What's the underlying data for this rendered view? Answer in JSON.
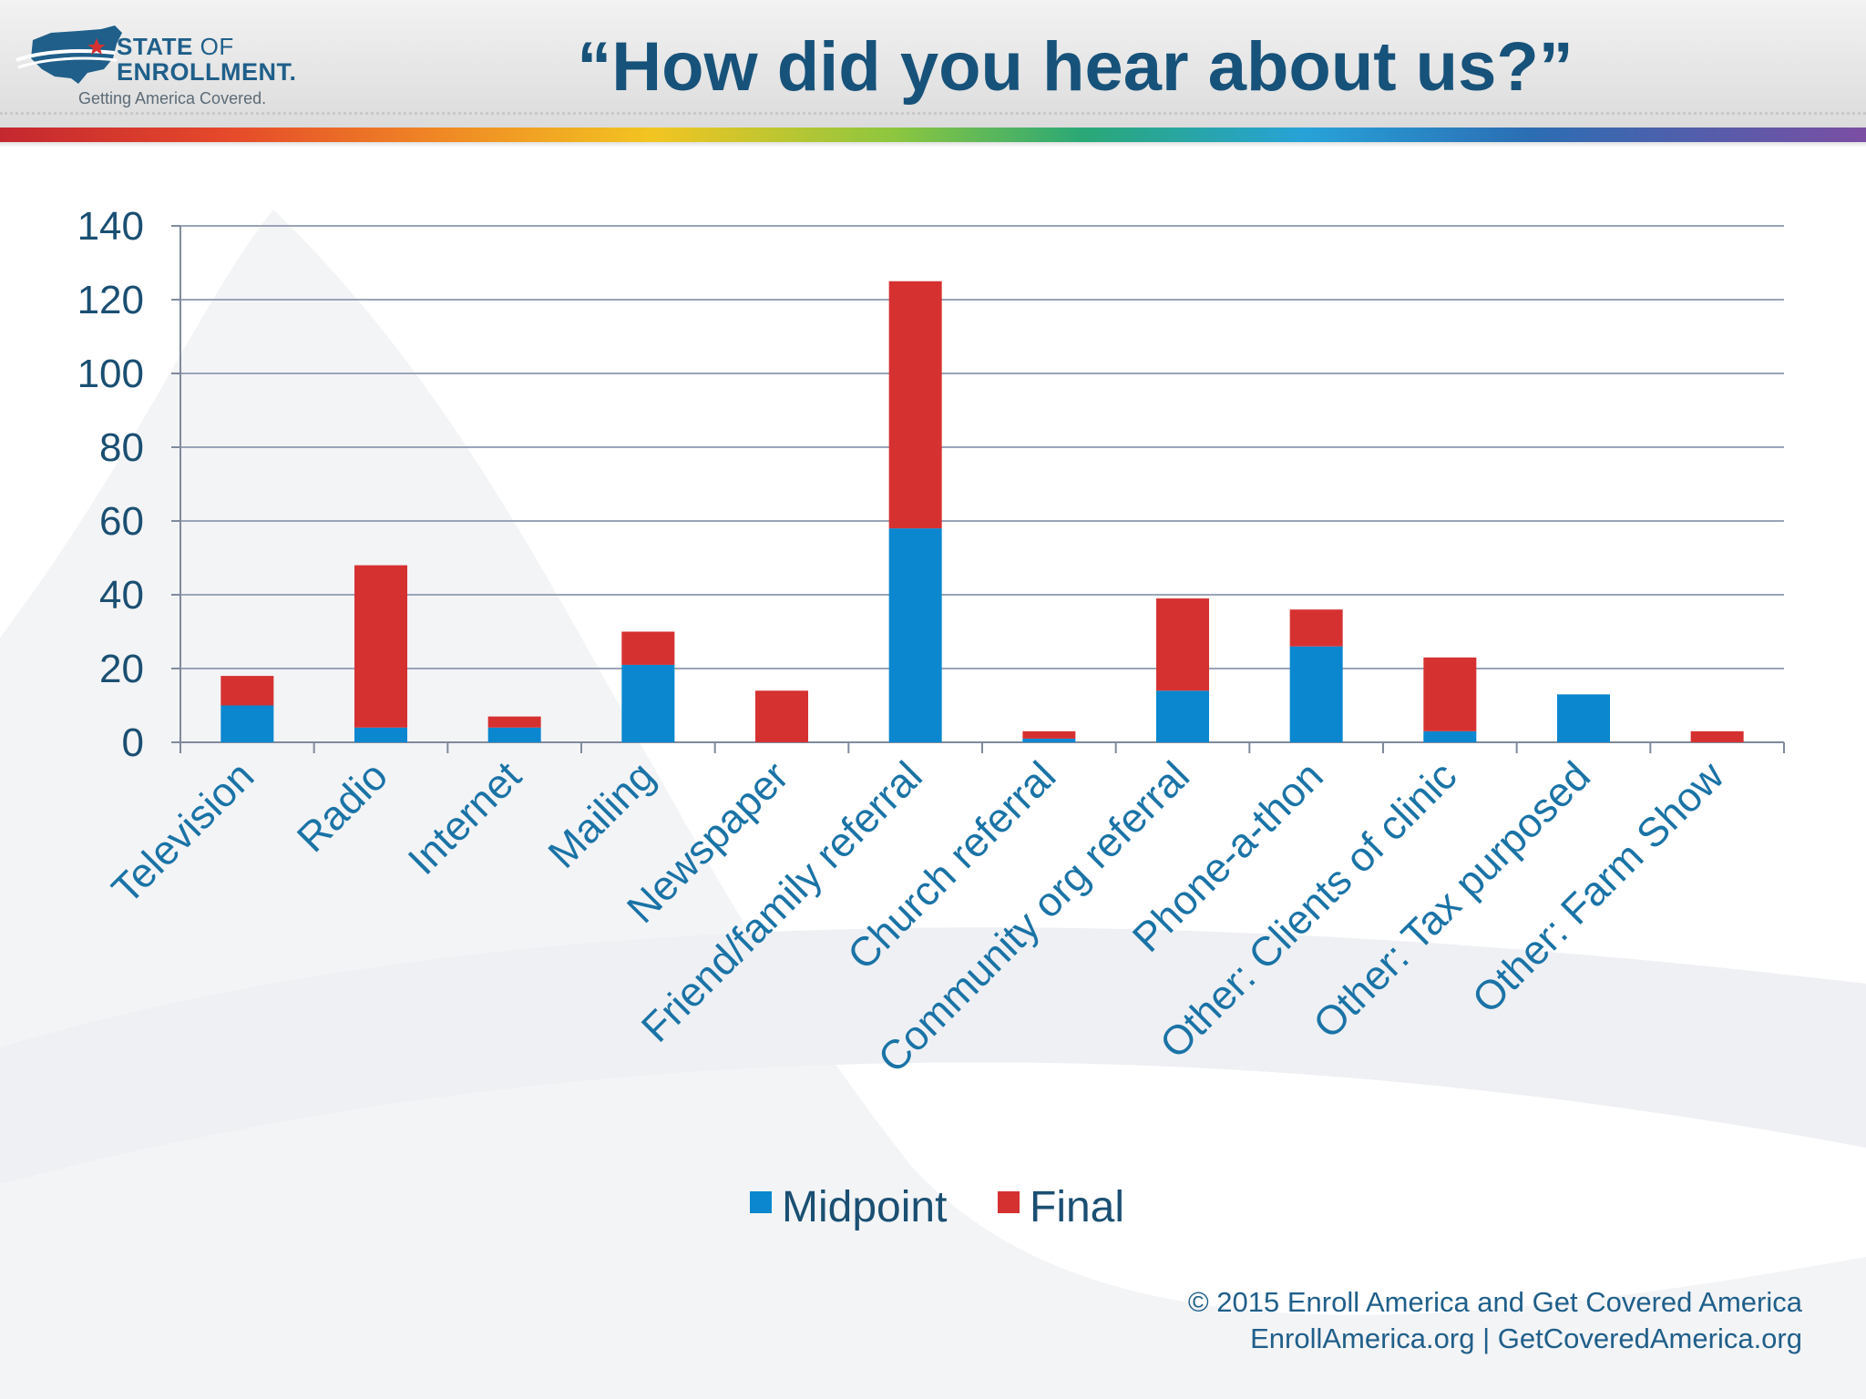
{
  "header": {
    "logo_line1_bold": "STATE",
    "logo_line1_rest": "OF",
    "logo_line2": "ENROLLMENT.",
    "logo_tagline": "Getting America Covered.",
    "title": "“How did you hear about us?”"
  },
  "colors": {
    "midpoint": "#0a87cf",
    "final": "#d63131",
    "gridline": "#9aa4b8",
    "title": "#17527a"
  },
  "chart_data": {
    "type": "bar",
    "stacked": true,
    "categories": [
      "Television",
      "Radio",
      "Internet",
      "Mailing",
      "Newspaper",
      "Friend/family referral",
      "Church referral",
      "Community org referral",
      "Phone-a-thon",
      "Other: Clients of clinic",
      "Other: Tax purposed",
      "Other: Farm Show"
    ],
    "series": [
      {
        "name": "Midpoint",
        "values": [
          10,
          4,
          4,
          21,
          0,
          58,
          1,
          14,
          26,
          3,
          13,
          0
        ]
      },
      {
        "name": "Final",
        "values": [
          8,
          44,
          3,
          9,
          14,
          67,
          2,
          25,
          10,
          20,
          0,
          3
        ]
      }
    ],
    "ylim": [
      0,
      140
    ],
    "yticks": [
      "0",
      "20",
      "40",
      "60",
      "80",
      "100",
      "120",
      "140"
    ],
    "grid": true,
    "legend_position": "bottom"
  },
  "footer": {
    "line1": "© 2015 Enroll America and Get Covered America",
    "line2": "EnrollAmerica.org | GetCoveredAmerica.org"
  }
}
